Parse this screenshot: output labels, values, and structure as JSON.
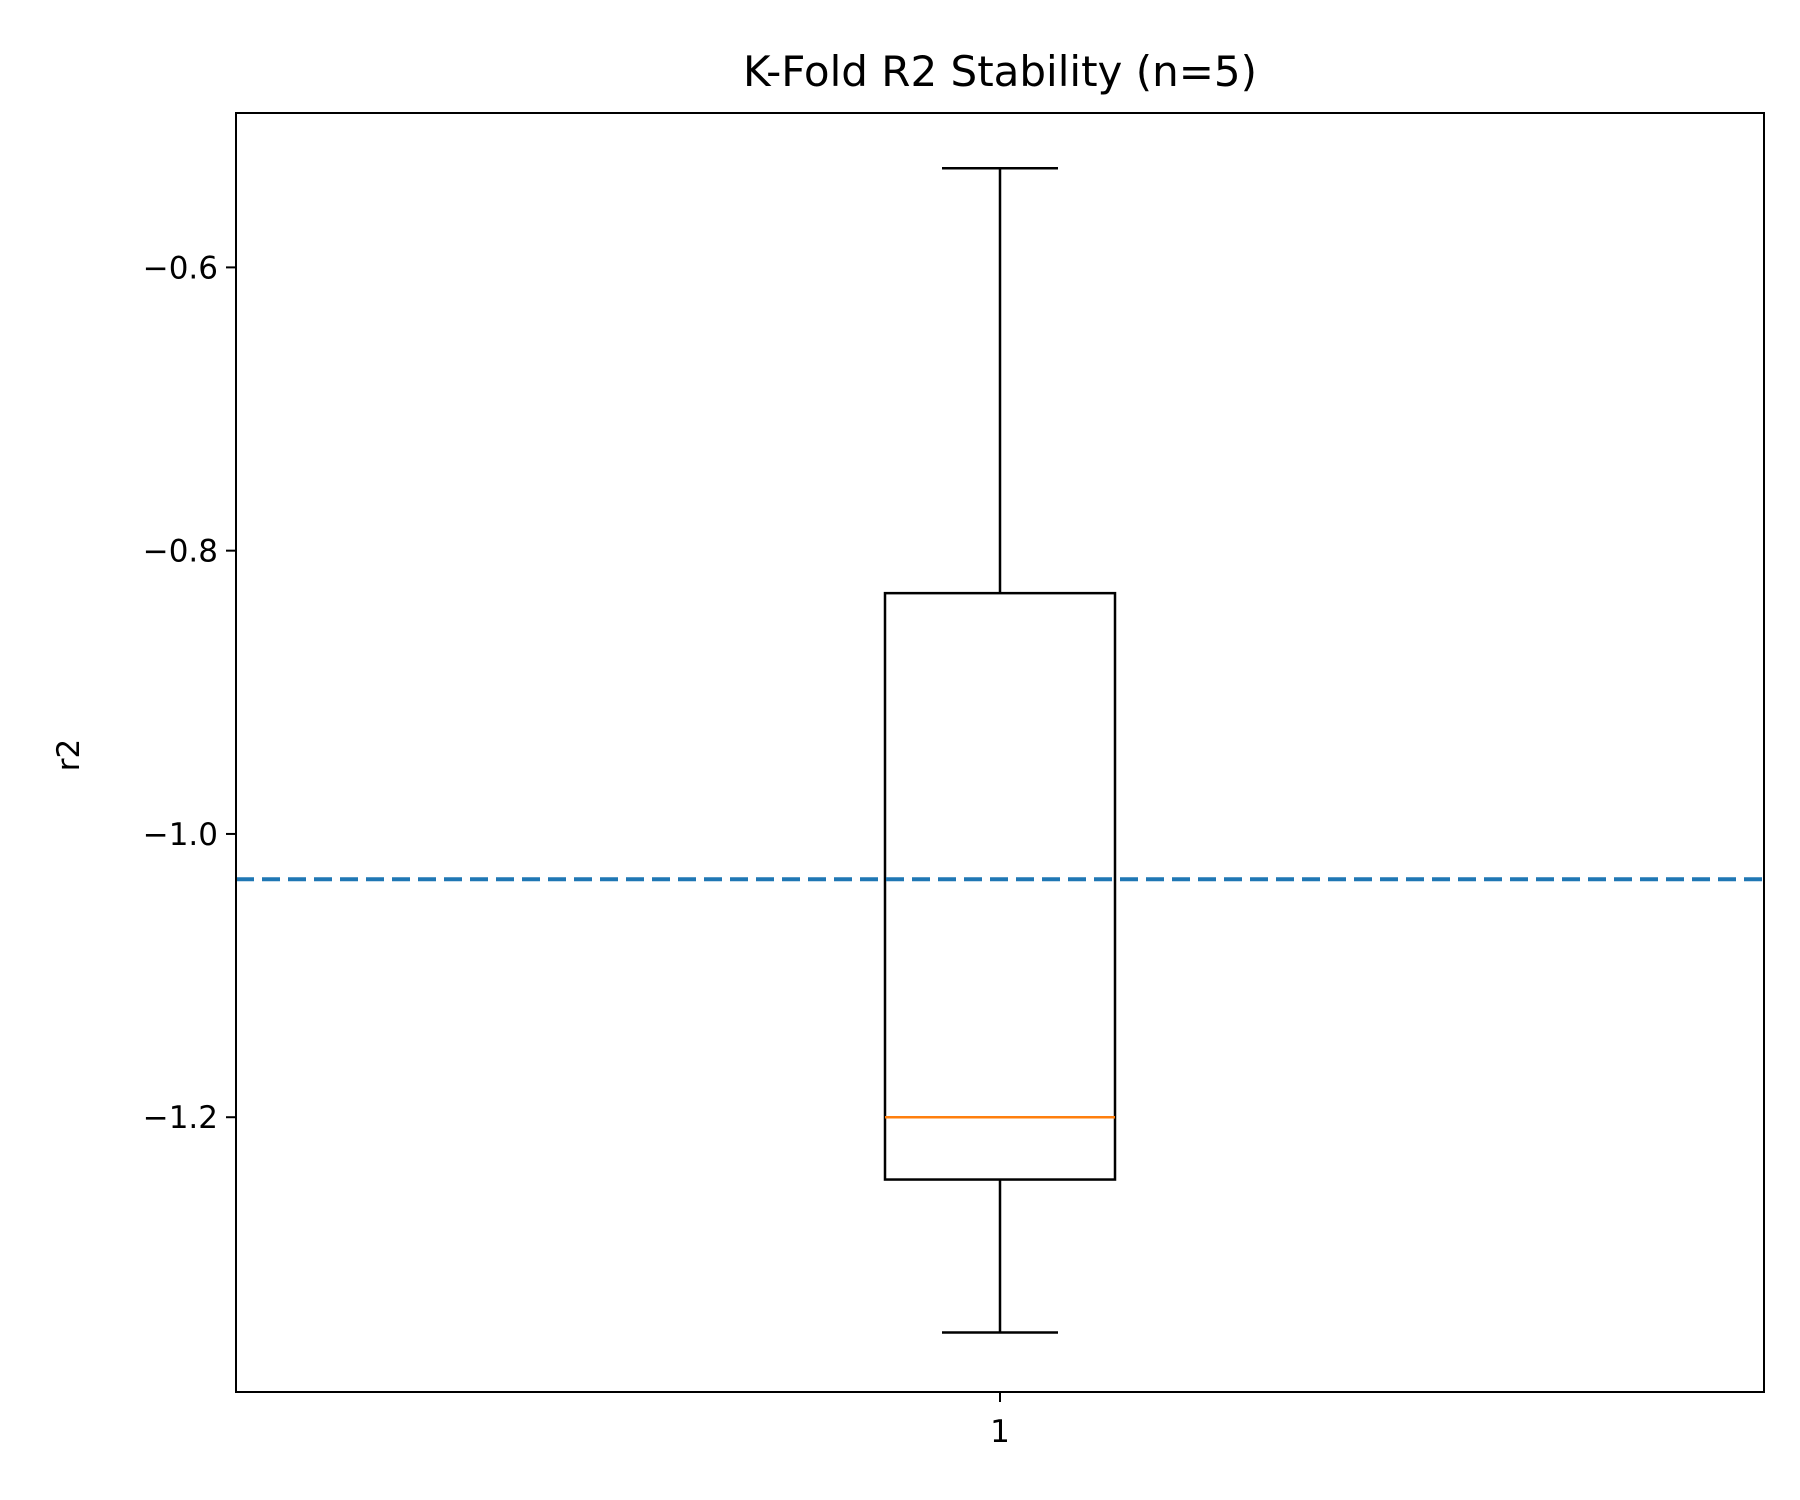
{
  "chart_data": {
    "type": "box",
    "title": "K-Fold R2 Stability (n=5)",
    "xlabel": "",
    "ylabel": "r2",
    "categories": [
      "1"
    ],
    "boxes": [
      {
        "category": "1",
        "whisker_high": -0.53,
        "q3": -0.83,
        "median": -1.2,
        "q1": -1.244,
        "whisker_low": -1.352
      }
    ],
    "reference_line": {
      "value": -1.032,
      "style": "dashed",
      "color": "#1f77b4"
    },
    "y_ticks": [
      -0.6,
      -0.8,
      -1.0,
      -1.2
    ],
    "y_tick_labels": [
      "−0.6",
      "−0.8",
      "−1.0",
      "−1.2"
    ],
    "ylim": [
      -1.394,
      -0.491
    ],
    "grid": false,
    "colors": {
      "box_edge": "#000000",
      "median": "#ff7f0e",
      "reference": "#1f77b4"
    }
  }
}
